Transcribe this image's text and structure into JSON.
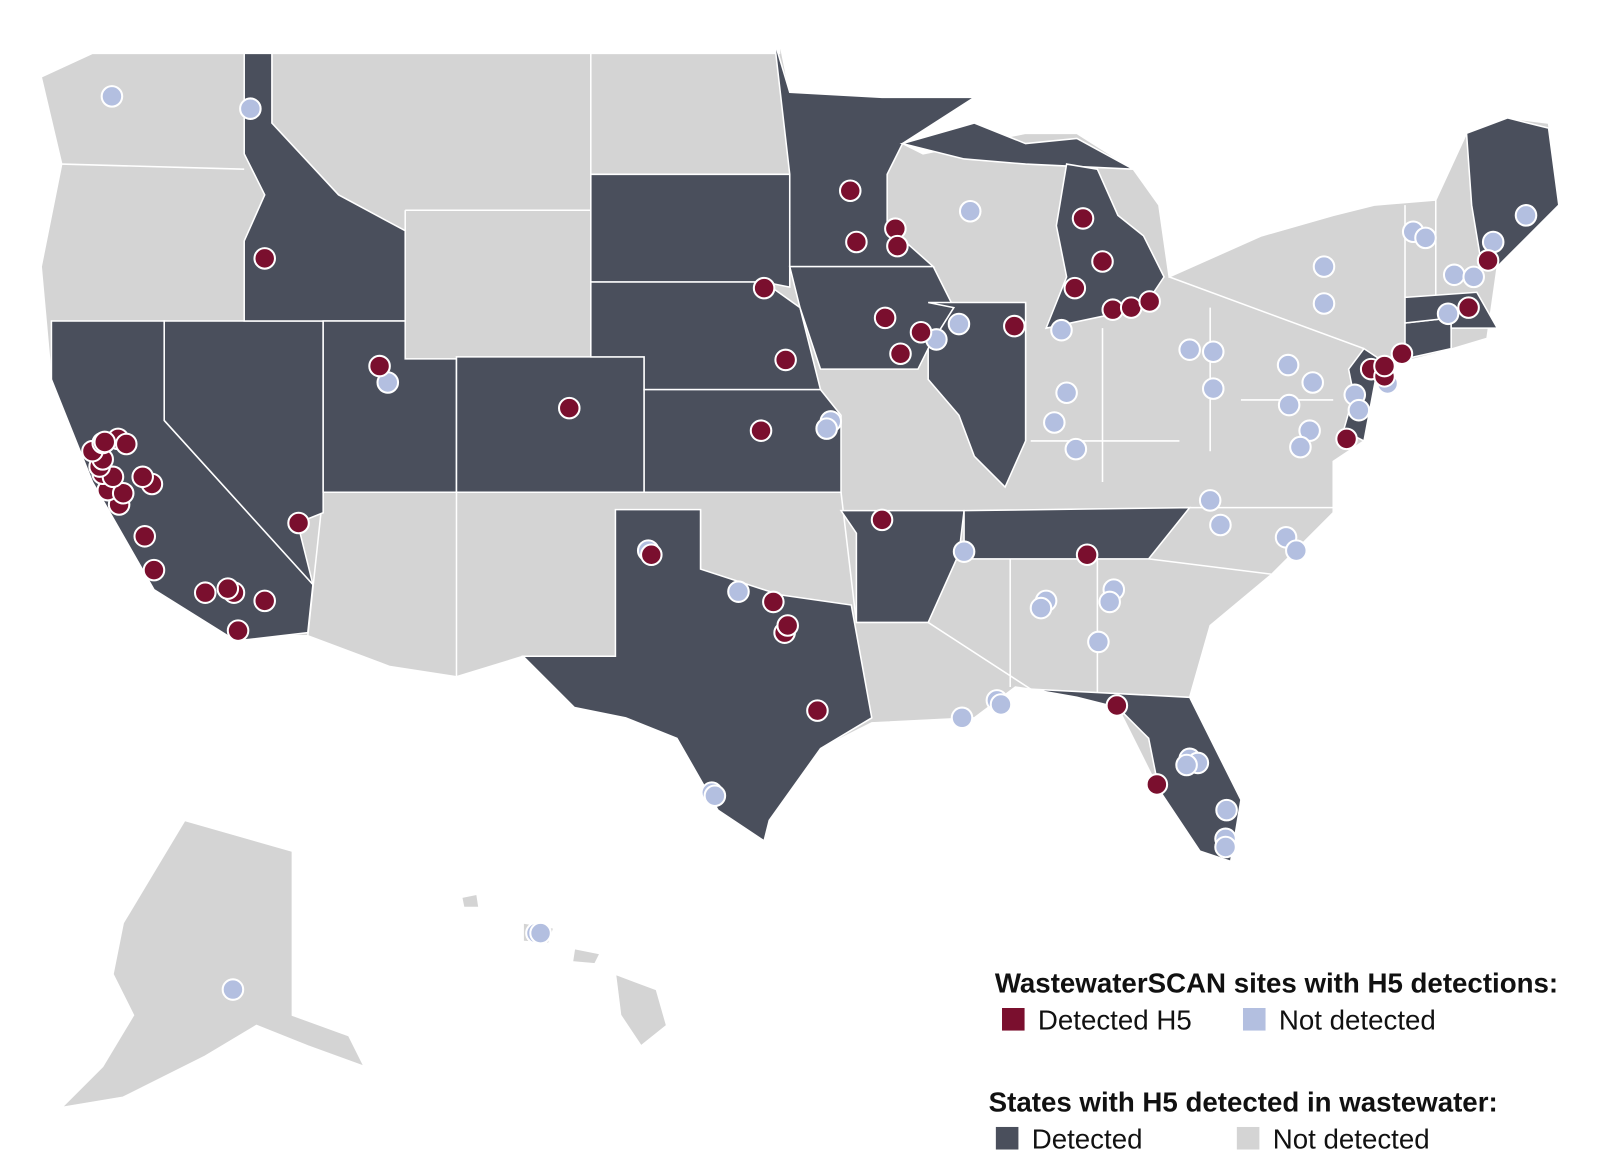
{
  "legend_sites": {
    "title": "WastewaterSCAN sites with H5 detections:",
    "items": [
      "Detected H5",
      "Not detected"
    ]
  },
  "legend_states": {
    "title": "States with H5 detected in wastewater:",
    "items": [
      "Detected",
      "Not detected"
    ]
  }
}
